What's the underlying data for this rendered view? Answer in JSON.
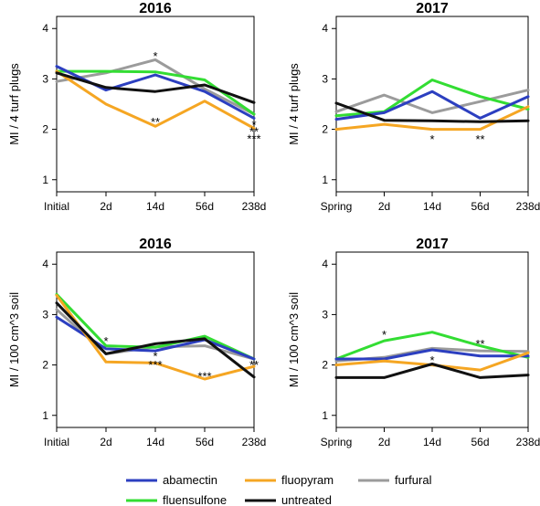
{
  "colors": {
    "abamectin": "#2c3fc0",
    "fluopyram": "#f5a623",
    "furfural": "#9b9b9b",
    "fluensulfone": "#33dd33",
    "untreated": "#111111"
  },
  "legend": [
    "abamectin",
    "fluopyram",
    "furfural",
    "fluensulfone",
    "untreated"
  ],
  "chart_data": [
    {
      "type": "line",
      "title": "2016",
      "ylabel": "MI / 4 turf plugs",
      "categories": [
        "Initial",
        "2d",
        "14d",
        "56d",
        "238d"
      ],
      "ylim": [
        1,
        4
      ],
      "yticks": [
        "1",
        "2",
        "3",
        "4"
      ],
      "series": [
        {
          "name": "abamectin",
          "values": [
            3.25,
            2.78,
            3.08,
            2.75,
            2.22
          ]
        },
        {
          "name": "fluopyram",
          "values": [
            3.15,
            2.5,
            2.06,
            2.56,
            2.02
          ]
        },
        {
          "name": "furfural",
          "values": [
            2.95,
            3.12,
            3.38,
            2.8,
            2.3
          ]
        },
        {
          "name": "fluensulfone",
          "values": [
            3.15,
            3.15,
            3.14,
            2.98,
            2.3
          ]
        },
        {
          "name": "untreated",
          "values": [
            3.12,
            2.83,
            2.75,
            2.88,
            2.53
          ]
        }
      ],
      "annotations": [
        {
          "category": "14d",
          "y": 3.48,
          "text": "*"
        },
        {
          "category": "14d",
          "y": 2.17,
          "text": "**"
        },
        {
          "category": "238d",
          "y": 2.12,
          "text": "*"
        },
        {
          "category": "238d",
          "y": 1.98,
          "text": "**"
        },
        {
          "category": "238d",
          "y": 1.84,
          "text": "***"
        }
      ]
    },
    {
      "type": "line",
      "title": "2017",
      "ylabel": "MI / 4 turf plugs",
      "categories": [
        "Spring",
        "2d",
        "14d",
        "56d",
        "238d"
      ],
      "ylim": [
        1,
        4
      ],
      "yticks": [
        "1",
        "2",
        "3",
        "4"
      ],
      "series": [
        {
          "name": "abamectin",
          "values": [
            2.2,
            2.33,
            2.75,
            2.22,
            2.65
          ]
        },
        {
          "name": "fluopyram",
          "values": [
            2.0,
            2.1,
            2.0,
            2.0,
            2.45
          ]
        },
        {
          "name": "furfural",
          "values": [
            2.35,
            2.68,
            2.33,
            2.55,
            2.78
          ]
        },
        {
          "name": "fluensulfone",
          "values": [
            2.27,
            2.35,
            2.98,
            2.65,
            2.4
          ]
        },
        {
          "name": "untreated",
          "values": [
            2.52,
            2.18,
            2.17,
            2.15,
            2.17
          ]
        }
      ],
      "annotations": [
        {
          "category": "14d",
          "y": 1.83,
          "text": "*"
        },
        {
          "category": "56d",
          "y": 1.83,
          "text": "**"
        }
      ]
    },
    {
      "type": "line",
      "title": "2016",
      "ylabel": "MI / 100 cm^3 soil",
      "categories": [
        "Initial",
        "2d",
        "14d",
        "56d",
        "238d"
      ],
      "ylim": [
        1,
        4
      ],
      "yticks": [
        "1",
        "2",
        "3",
        "4"
      ],
      "series": [
        {
          "name": "abamectin",
          "values": [
            2.95,
            2.32,
            2.28,
            2.5,
            2.12
          ]
        },
        {
          "name": "fluopyram",
          "values": [
            3.38,
            2.06,
            2.04,
            1.72,
            1.97
          ]
        },
        {
          "name": "furfural",
          "values": [
            3.1,
            2.22,
            2.36,
            2.38,
            2.12
          ]
        },
        {
          "name": "fluensulfone",
          "values": [
            3.4,
            2.38,
            2.35,
            2.57,
            2.12
          ]
        },
        {
          "name": "untreated",
          "values": [
            3.23,
            2.22,
            2.42,
            2.52,
            1.76
          ]
        }
      ],
      "annotations": [
        {
          "category": "2d",
          "y": 2.5,
          "text": "*"
        },
        {
          "category": "14d",
          "y": 2.2,
          "text": "*"
        },
        {
          "category": "14d",
          "y": 2.03,
          "text": "***"
        },
        {
          "category": "56d",
          "y": 1.8,
          "text": "***"
        },
        {
          "category": "238d",
          "y": 2.03,
          "text": "**"
        }
      ]
    },
    {
      "type": "line",
      "title": "2017",
      "ylabel": "MI / 100 cm^3 soil",
      "categories": [
        "Spring",
        "2d",
        "14d",
        "56d",
        "238d"
      ],
      "ylim": [
        1,
        4
      ],
      "yticks": [
        "1",
        "2",
        "3",
        "4"
      ],
      "series": [
        {
          "name": "abamectin",
          "values": [
            2.12,
            2.12,
            2.3,
            2.18,
            2.18
          ]
        },
        {
          "name": "fluopyram",
          "values": [
            2.0,
            2.08,
            2.0,
            1.9,
            2.24
          ]
        },
        {
          "name": "furfural",
          "values": [
            2.08,
            2.15,
            2.33,
            2.28,
            2.27
          ]
        },
        {
          "name": "fluensulfone",
          "values": [
            2.12,
            2.48,
            2.65,
            2.38,
            2.15
          ]
        },
        {
          "name": "untreated",
          "values": [
            1.75,
            1.75,
            2.02,
            1.75,
            1.8
          ]
        }
      ],
      "annotations": [
        {
          "category": "2d",
          "y": 2.63,
          "text": "*"
        },
        {
          "category": "14d",
          "y": 2.12,
          "text": "*"
        },
        {
          "category": "56d",
          "y": 2.45,
          "text": "**"
        }
      ]
    }
  ]
}
